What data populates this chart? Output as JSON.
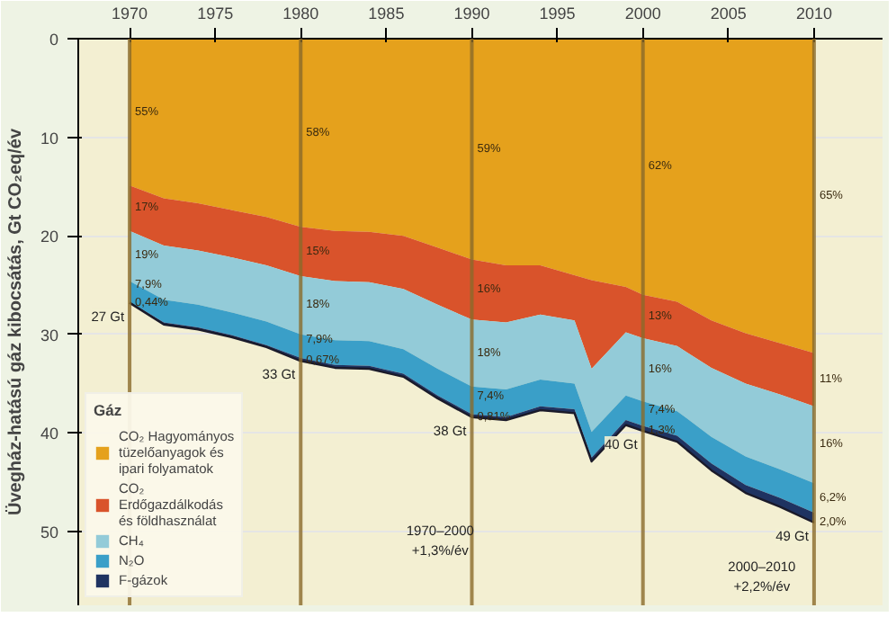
{
  "chart_data": {
    "type": "area",
    "stacked": true,
    "ylabel": "Üvegház-hatású gáz kibocsátás, Gt CO₂eq/év",
    "legend_title": "Gáz",
    "legend": "bottom left",
    "grid": "y",
    "totals": [
      "27 Gt",
      null,
      null,
      null,
      null,
      "33 Gt",
      null,
      null,
      null,
      null,
      "38 Gt",
      null,
      null,
      null,
      null,
      null,
      "40 Gt",
      null,
      null,
      null,
      null,
      "49 Gt"
    ],
    "x": [
      1970,
      1972,
      1974,
      1976,
      1978,
      1980,
      1982,
      1984,
      1986,
      1988,
      1990,
      1992,
      1994,
      1996,
      1997,
      1999,
      2000,
      2002,
      2004,
      2006,
      2008,
      2010
    ],
    "xlim": [
      1967,
      2014
    ],
    "xticks": [
      1970,
      1975,
      1980,
      1985,
      1990,
      1995,
      2000,
      2005,
      2010
    ],
    "ylim": [
      57.5,
      0
    ],
    "yticks": [
      0,
      10,
      20,
      30,
      40,
      50
    ],
    "series": [
      {
        "name": "CO₂ Hagyományos tüzelőanyagok és ipari folyamatok",
        "color": "#e5a11c",
        "values": [
          14.9,
          16.2,
          16.7,
          17.4,
          18.1,
          19.1,
          19.5,
          19.6,
          20.0,
          21.2,
          22.4,
          23.0,
          23.0,
          24.0,
          24.5,
          25.2,
          26.0,
          26.7,
          28.6,
          29.9,
          30.9,
          31.9
        ]
      },
      {
        "name": "CO₂ Erdőgazdálkodás és földhasználat",
        "color": "#d9532b",
        "values": [
          4.6,
          4.8,
          4.8,
          4.8,
          4.9,
          5.0,
          5.1,
          5.1,
          5.4,
          5.8,
          6.1,
          5.8,
          5.0,
          4.6,
          9.0,
          4.6,
          4.4,
          4.5,
          4.8,
          5.1,
          5.2,
          5.4
        ]
      },
      {
        "name": "CH₄",
        "color": "#93cbd8",
        "values": [
          5.1,
          5.5,
          5.5,
          5.6,
          5.7,
          5.9,
          6.0,
          6.0,
          6.1,
          6.5,
          6.8,
          6.8,
          6.6,
          6.4,
          6.4,
          6.4,
          6.4,
          6.6,
          7.0,
          7.4,
          7.6,
          7.8
        ]
      },
      {
        "name": "N₂O",
        "color": "#3a9fc8",
        "values": [
          2.1,
          2.3,
          2.3,
          2.3,
          2.4,
          2.4,
          2.5,
          2.5,
          2.5,
          2.7,
          2.8,
          2.8,
          2.7,
          2.6,
          2.6,
          2.5,
          2.5,
          2.5,
          2.7,
          2.9,
          2.9,
          3.0
        ]
      },
      {
        "name": "F-gázok",
        "color": "#1f3361",
        "values": [
          0.1,
          0.2,
          0.2,
          0.2,
          0.2,
          0.3,
          0.3,
          0.3,
          0.3,
          0.3,
          0.3,
          0.3,
          0.4,
          0.4,
          0.4,
          0.5,
          0.5,
          0.6,
          0.7,
          0.8,
          0.9,
          1.0
        ]
      }
    ],
    "ref_lines": [
      {
        "axis": "x",
        "value": 1970,
        "color": "#8a6a2a"
      },
      {
        "axis": "x",
        "value": 1980,
        "color": "#8a6a2a"
      },
      {
        "axis": "x",
        "value": 1990,
        "color": "#8a6a2a"
      },
      {
        "axis": "x",
        "value": 2000,
        "color": "#8a6a2a"
      },
      {
        "axis": "x",
        "value": 2010,
        "color": "#8a6a2a"
      }
    ],
    "annotations": [
      {
        "text": "55%",
        "x": 1970,
        "y": 7.5
      },
      {
        "text": "17%",
        "x": 1970,
        "y": 17.2
      },
      {
        "text": "19%",
        "x": 1970,
        "y": 22.0
      },
      {
        "text": "7,9%",
        "x": 1970,
        "y": 25.0
      },
      {
        "text": "0,44%",
        "x": 1970,
        "y": 26.8
      },
      {
        "text": "58%",
        "x": 1980,
        "y": 9.6
      },
      {
        "text": "15%",
        "x": 1980,
        "y": 21.6
      },
      {
        "text": "18%",
        "x": 1980,
        "y": 27.0
      },
      {
        "text": "7,9%",
        "x": 1980,
        "y": 30.6
      },
      {
        "text": "0,67%",
        "x": 1980,
        "y": 32.7
      },
      {
        "text": "59%",
        "x": 1990,
        "y": 11.2
      },
      {
        "text": "16%",
        "x": 1990,
        "y": 25.5
      },
      {
        "text": "18%",
        "x": 1990,
        "y": 31.9
      },
      {
        "text": "7,4%",
        "x": 1990,
        "y": 36.3
      },
      {
        "text": "0,81%",
        "x": 1990,
        "y": 38.4
      },
      {
        "text": "62%",
        "x": 2000,
        "y": 13.0
      },
      {
        "text": "13%",
        "x": 2000,
        "y": 28.2
      },
      {
        "text": "16%",
        "x": 2000,
        "y": 33.6
      },
      {
        "text": "7,4%",
        "x": 2000,
        "y": 37.7
      },
      {
        "text": "1,3%",
        "x": 2000,
        "y": 39.8
      },
      {
        "text": "65%",
        "x": 2010,
        "y": 16.0
      },
      {
        "text": "11%",
        "x": 2010,
        "y": 34.6
      },
      {
        "text": "16%",
        "x": 2010,
        "y": 41.2
      },
      {
        "text": "6,2%",
        "x": 2010,
        "y": 46.6
      },
      {
        "text": "2,0%",
        "x": 2010,
        "y": 49.1
      },
      "1970–2000\n+1,3%/év",
      "2000–2010\n+2,2%/év"
    ]
  }
}
